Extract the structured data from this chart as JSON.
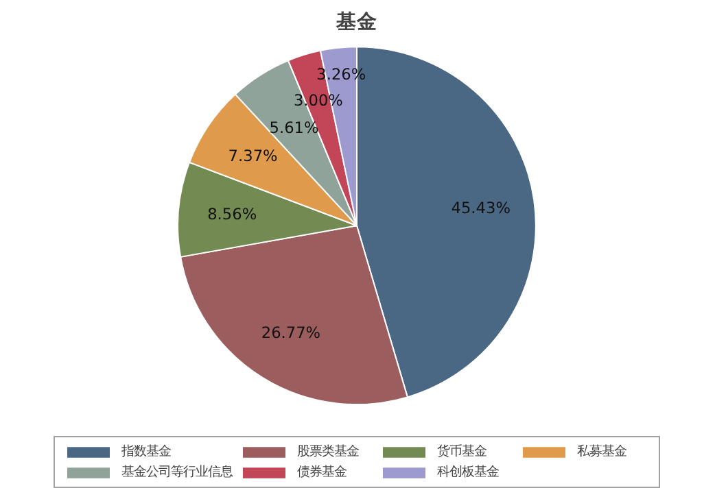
{
  "chart_data": {
    "type": "pie",
    "title": "基金",
    "categories": [
      "指数基金",
      "股票类基金",
      "货币基金",
      "私募基金",
      "基金公司等行业信息",
      "债券基金",
      "科创板基金"
    ],
    "values": [
      45.43,
      26.77,
      8.56,
      7.37,
      5.61,
      3.0,
      3.26
    ],
    "value_labels": [
      "45.43%",
      "26.77%",
      "8.56%",
      "7.37%",
      "5.61%",
      "3.00%",
      "3.26%"
    ],
    "colors": [
      "#4a6784",
      "#9c5d5e",
      "#738a52",
      "#e09a4c",
      "#8fa39a",
      "#c24558",
      "#9d9ad0"
    ],
    "legend": "bottom"
  }
}
